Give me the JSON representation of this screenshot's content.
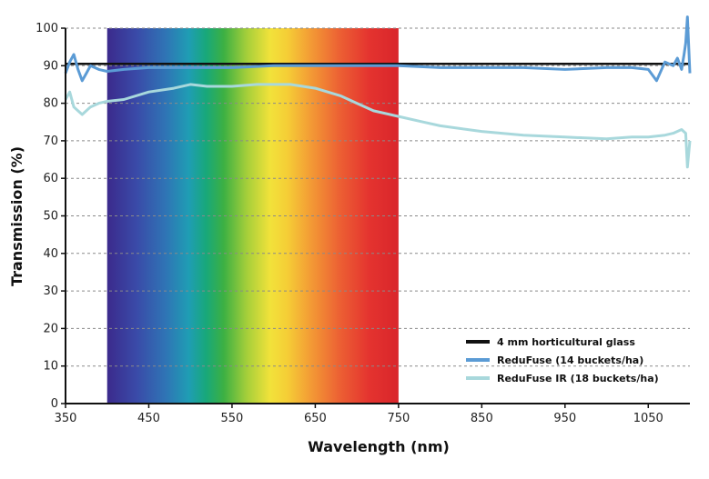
{
  "chart_data": {
    "type": "line",
    "title": "",
    "xlabel": "Wavelength (nm)",
    "ylabel": "Transmission (%)",
    "xlim": [
      350,
      1100
    ],
    "ylim": [
      0,
      100
    ],
    "x_ticks": [
      350,
      450,
      550,
      650,
      750,
      850,
      950,
      1050
    ],
    "y_ticks": [
      0,
      10,
      20,
      30,
      40,
      50,
      60,
      70,
      80,
      90,
      100
    ],
    "grid": "horizontal-dashed",
    "legend_position": "bottom-right",
    "spectrum_band": {
      "x_start": 400,
      "x_end": 750
    },
    "series": [
      {
        "name": "4 mm horticultural glass",
        "color": "#111111",
        "x": [
          350,
          1100
        ],
        "y": [
          90.5,
          90.5
        ]
      },
      {
        "name": "ReduFuse (14 buckets/ha)",
        "color": "#5b9bd5",
        "x": [
          350,
          355,
          360,
          365,
          370,
          375,
          380,
          390,
          400,
          420,
          450,
          500,
          550,
          600,
          650,
          700,
          750,
          800,
          850,
          900,
          950,
          1000,
          1030,
          1050,
          1060,
          1070,
          1080,
          1085,
          1090,
          1093,
          1095,
          1097,
          1100
        ],
        "y": [
          88,
          91,
          93,
          89,
          86,
          88,
          90,
          89,
          88.5,
          89,
          89.5,
          89.5,
          89.5,
          90,
          90,
          90,
          90,
          89.5,
          89.5,
          89.5,
          89,
          89.5,
          89.5,
          89,
          86,
          91,
          90,
          92,
          89,
          93,
          96,
          103,
          88
        ]
      },
      {
        "name": "ReduFuse IR (18 buckets/ha)",
        "color": "#a8d8dc",
        "x": [
          350,
          355,
          360,
          365,
          370,
          380,
          390,
          400,
          420,
          450,
          480,
          500,
          520,
          550,
          580,
          600,
          620,
          650,
          680,
          700,
          720,
          750,
          780,
          800,
          850,
          900,
          950,
          1000,
          1030,
          1050,
          1070,
          1080,
          1090,
          1095,
          1097,
          1100
        ],
        "y": [
          81,
          83,
          79,
          78,
          77,
          79,
          80,
          80.5,
          81,
          83,
          84,
          85,
          84.5,
          84.5,
          85,
          85,
          85,
          84,
          82,
          80,
          78,
          76.5,
          75,
          74,
          72.5,
          71.5,
          71,
          70.5,
          71,
          71,
          71.5,
          72,
          73,
          72,
          63,
          70
        ]
      }
    ]
  }
}
